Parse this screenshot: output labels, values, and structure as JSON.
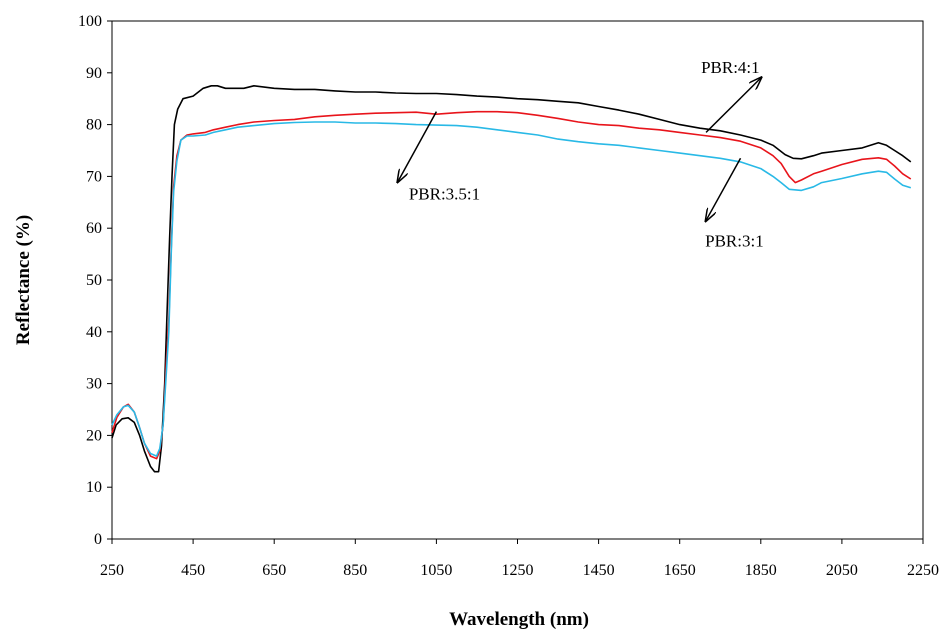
{
  "chart_data": {
    "type": "line",
    "title": "",
    "xlabel": "Wavelength (nm)",
    "ylabel": "Reflectance (%)",
    "xlim": [
      250,
      2250
    ],
    "ylim": [
      0,
      100
    ],
    "xticks": [
      250,
      450,
      650,
      850,
      1050,
      1250,
      1450,
      1650,
      1850,
      2050,
      2250
    ],
    "yticks": [
      0,
      10,
      20,
      30,
      40,
      50,
      60,
      70,
      80,
      90,
      100
    ],
    "grid": false,
    "legend": "none",
    "series": [
      {
        "color": "#000000",
        "points": [
          [
            250,
            19.5
          ],
          [
            260,
            22
          ],
          [
            275,
            23.2
          ],
          [
            290,
            23.4
          ],
          [
            305,
            22.5
          ],
          [
            318,
            20
          ],
          [
            330,
            17
          ],
          [
            345,
            14
          ],
          [
            355,
            13
          ],
          [
            365,
            13
          ],
          [
            372,
            18
          ],
          [
            380,
            30
          ],
          [
            386,
            44
          ],
          [
            392,
            58
          ],
          [
            398,
            70
          ],
          [
            404,
            80
          ],
          [
            412,
            83
          ],
          [
            425,
            85
          ],
          [
            450,
            85.5
          ],
          [
            475,
            87
          ],
          [
            495,
            87.5
          ],
          [
            510,
            87.5
          ],
          [
            530,
            87
          ],
          [
            550,
            87
          ],
          [
            575,
            87
          ],
          [
            600,
            87.5
          ],
          [
            650,
            87
          ],
          [
            700,
            86.8
          ],
          [
            750,
            86.8
          ],
          [
            800,
            86.5
          ],
          [
            850,
            86.3
          ],
          [
            900,
            86.3
          ],
          [
            950,
            86.1
          ],
          [
            1000,
            86
          ],
          [
            1050,
            86
          ],
          [
            1100,
            85.8
          ],
          [
            1150,
            85.5
          ],
          [
            1200,
            85.3
          ],
          [
            1250,
            85
          ],
          [
            1300,
            84.8
          ],
          [
            1350,
            84.5
          ],
          [
            1400,
            84.2
          ],
          [
            1450,
            83.5
          ],
          [
            1500,
            82.8
          ],
          [
            1550,
            82
          ],
          [
            1600,
            81
          ],
          [
            1650,
            80
          ],
          [
            1700,
            79.3
          ],
          [
            1750,
            78.8
          ],
          [
            1800,
            78
          ],
          [
            1850,
            77
          ],
          [
            1880,
            76
          ],
          [
            1910,
            74.2
          ],
          [
            1930,
            73.5
          ],
          [
            1950,
            73.4
          ],
          [
            1980,
            74
          ],
          [
            2000,
            74.5
          ],
          [
            2050,
            75
          ],
          [
            2100,
            75.5
          ],
          [
            2140,
            76.5
          ],
          [
            2160,
            76
          ],
          [
            2180,
            75
          ],
          [
            2200,
            74
          ],
          [
            2220,
            72.8
          ]
        ]
      },
      {
        "color": "#e8141b",
        "points": [
          [
            250,
            20.5
          ],
          [
            262,
            23.5
          ],
          [
            278,
            25.5
          ],
          [
            290,
            26
          ],
          [
            305,
            24.5
          ],
          [
            318,
            21.5
          ],
          [
            330,
            18.5
          ],
          [
            345,
            16
          ],
          [
            360,
            15.5
          ],
          [
            368,
            17
          ],
          [
            376,
            22
          ],
          [
            384,
            34
          ],
          [
            390,
            42
          ],
          [
            396,
            56
          ],
          [
            402,
            68
          ],
          [
            410,
            74
          ],
          [
            420,
            77
          ],
          [
            435,
            78
          ],
          [
            450,
            78.2
          ],
          [
            480,
            78.5
          ],
          [
            500,
            79
          ],
          [
            530,
            79.5
          ],
          [
            560,
            80
          ],
          [
            600,
            80.5
          ],
          [
            650,
            80.8
          ],
          [
            700,
            81
          ],
          [
            750,
            81.5
          ],
          [
            800,
            81.8
          ],
          [
            850,
            82
          ],
          [
            900,
            82.2
          ],
          [
            950,
            82.3
          ],
          [
            1000,
            82.4
          ],
          [
            1050,
            82
          ],
          [
            1100,
            82.3
          ],
          [
            1150,
            82.5
          ],
          [
            1200,
            82.5
          ],
          [
            1250,
            82.3
          ],
          [
            1300,
            81.8
          ],
          [
            1350,
            81.2
          ],
          [
            1400,
            80.5
          ],
          [
            1450,
            80
          ],
          [
            1500,
            79.8
          ],
          [
            1550,
            79.3
          ],
          [
            1600,
            79
          ],
          [
            1650,
            78.5
          ],
          [
            1700,
            78
          ],
          [
            1750,
            77.5
          ],
          [
            1800,
            76.8
          ],
          [
            1850,
            75.5
          ],
          [
            1880,
            74
          ],
          [
            1900,
            72.5
          ],
          [
            1920,
            70
          ],
          [
            1935,
            68.8
          ],
          [
            1950,
            69.3
          ],
          [
            1980,
            70.5
          ],
          [
            2000,
            71
          ],
          [
            2050,
            72.3
          ],
          [
            2100,
            73.3
          ],
          [
            2140,
            73.6
          ],
          [
            2160,
            73.3
          ],
          [
            2180,
            72
          ],
          [
            2200,
            70.5
          ],
          [
            2220,
            69.5
          ]
        ]
      },
      {
        "color": "#29b9e6",
        "points": [
          [
            250,
            22
          ],
          [
            262,
            24
          ],
          [
            278,
            25.5
          ],
          [
            290,
            25.8
          ],
          [
            305,
            24.5
          ],
          [
            318,
            21.5
          ],
          [
            330,
            18.5
          ],
          [
            345,
            16.5
          ],
          [
            360,
            16
          ],
          [
            368,
            17.5
          ],
          [
            376,
            22
          ],
          [
            384,
            32
          ],
          [
            390,
            40
          ],
          [
            396,
            55
          ],
          [
            402,
            67
          ],
          [
            410,
            73
          ],
          [
            420,
            77
          ],
          [
            435,
            77.8
          ],
          [
            450,
            77.8
          ],
          [
            480,
            78
          ],
          [
            500,
            78.5
          ],
          [
            530,
            79
          ],
          [
            560,
            79.5
          ],
          [
            600,
            79.8
          ],
          [
            650,
            80.2
          ],
          [
            700,
            80.4
          ],
          [
            750,
            80.5
          ],
          [
            800,
            80.5
          ],
          [
            850,
            80.3
          ],
          [
            900,
            80.3
          ],
          [
            950,
            80.2
          ],
          [
            1000,
            80
          ],
          [
            1050,
            79.9
          ],
          [
            1100,
            79.8
          ],
          [
            1150,
            79.5
          ],
          [
            1200,
            79
          ],
          [
            1250,
            78.5
          ],
          [
            1300,
            78
          ],
          [
            1350,
            77.2
          ],
          [
            1400,
            76.7
          ],
          [
            1450,
            76.3
          ],
          [
            1500,
            76
          ],
          [
            1550,
            75.5
          ],
          [
            1600,
            75
          ],
          [
            1650,
            74.5
          ],
          [
            1700,
            74
          ],
          [
            1750,
            73.5
          ],
          [
            1800,
            72.8
          ],
          [
            1850,
            71.5
          ],
          [
            1880,
            70
          ],
          [
            1900,
            68.8
          ],
          [
            1920,
            67.5
          ],
          [
            1950,
            67.3
          ],
          [
            1980,
            68
          ],
          [
            2000,
            68.8
          ],
          [
            2050,
            69.6
          ],
          [
            2100,
            70.5
          ],
          [
            2140,
            71
          ],
          [
            2160,
            70.8
          ],
          [
            2180,
            69.5
          ],
          [
            2200,
            68.3
          ],
          [
            2220,
            67.8
          ]
        ]
      }
    ],
    "annotations": [
      {
        "text": "PBR:4:1",
        "x": 1775,
        "y": 90,
        "arrow_from": [
          1715,
          78.5
        ],
        "arrow_to": [
          1850,
          89
        ]
      },
      {
        "text": "PBR:3.5:1",
        "x": 1070,
        "y": 65.5,
        "arrow_from": [
          1050,
          82.5
        ],
        "arrow_to": [
          955,
          69
        ]
      },
      {
        "text": "PBR:3:1",
        "x": 1785,
        "y": 56.5,
        "arrow_from": [
          1800,
          73.5
        ],
        "arrow_to": [
          1715,
          61.5
        ]
      }
    ]
  }
}
